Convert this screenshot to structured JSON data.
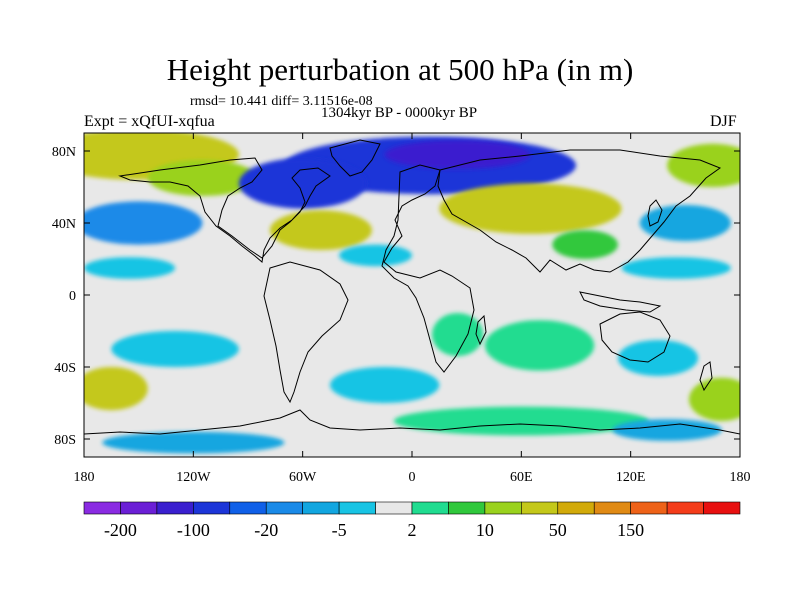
{
  "chart_data": {
    "type": "heatmap",
    "title": "Height perturbation at 500 hPa (in m)",
    "stats_line": "rmsd= 10.441  diff= 3.11516e-08",
    "subtitle": "1304kyr BP - 0000kyr BP",
    "left_label": "Expt = xQfUI-xqfua",
    "right_label": "DJF",
    "x_axis": {
      "range": [
        -180,
        180
      ],
      "ticks": [
        {
          "value": -180,
          "label": "180"
        },
        {
          "value": -120,
          "label": "120W"
        },
        {
          "value": -60,
          "label": "60W"
        },
        {
          "value": 0,
          "label": "0"
        },
        {
          "value": 60,
          "label": "60E"
        },
        {
          "value": 120,
          "label": "120E"
        },
        {
          "value": 180,
          "label": "180"
        }
      ]
    },
    "y_axis": {
      "range": [
        -90,
        90
      ],
      "ticks": [
        {
          "value": 80,
          "label": "80N"
        },
        {
          "value": 40,
          "label": "40N"
        },
        {
          "value": 0,
          "label": "0"
        },
        {
          "value": -40,
          "label": "40S"
        },
        {
          "value": -80,
          "label": "80S"
        }
      ]
    },
    "colorbar": {
      "colors": [
        "#8a2be2",
        "#6b1fd6",
        "#3a1fcf",
        "#1c35d8",
        "#1060e8",
        "#1a8ae8",
        "#12a6e0",
        "#18c4e4",
        "#e8e8e8",
        "#20dc90",
        "#30c83c",
        "#9ad21e",
        "#c4c81a",
        "#d2aa0a",
        "#e08a14",
        "#ee6218",
        "#f43c1a",
        "#e81010"
      ],
      "labels": [
        {
          "after_index": 0,
          "text": "-200"
        },
        {
          "after_index": 2,
          "text": "-100"
        },
        {
          "after_index": 4,
          "text": "-20"
        },
        {
          "after_index": 6,
          "text": "-5"
        },
        {
          "after_index": 8,
          "text": "2"
        },
        {
          "after_index": 10,
          "text": "10"
        },
        {
          "after_index": 12,
          "text": "50"
        },
        {
          "after_index": 14,
          "text": "150"
        }
      ]
    },
    "field_regions": [
      {
        "name": "arctic-pacific-high",
        "lon": -150,
        "lat": 78,
        "rx": 55,
        "ry": 14,
        "level": 12
      },
      {
        "name": "north-america-high",
        "lon": -115,
        "lat": 65,
        "rx": 30,
        "ry": 10,
        "level": 11
      },
      {
        "name": "arctic-low",
        "lon": 10,
        "lat": 72,
        "rx": 80,
        "ry": 16,
        "level": 3
      },
      {
        "name": "arctic-low-core",
        "lon": 25,
        "lat": 78,
        "rx": 40,
        "ry": 8,
        "level": 2
      },
      {
        "name": "canada-low",
        "lon": -60,
        "lat": 62,
        "rx": 35,
        "ry": 14,
        "level": 3
      },
      {
        "name": "eurasia-high",
        "lon": 65,
        "lat": 48,
        "rx": 50,
        "ry": 14,
        "level": 12
      },
      {
        "name": "north-atlantic-high",
        "lon": -50,
        "lat": 36,
        "rx": 28,
        "ry": 11,
        "level": 12
      },
      {
        "name": "north-pacific-low",
        "lon": -150,
        "lat": 40,
        "rx": 35,
        "ry": 12,
        "level": 5
      },
      {
        "name": "east-asia-low",
        "lon": 150,
        "lat": 40,
        "rx": 25,
        "ry": 10,
        "level": 6
      },
      {
        "name": "arctic-east-high",
        "lon": 165,
        "lat": 72,
        "rx": 25,
        "ry": 12,
        "level": 11
      },
      {
        "name": "south-asia-green",
        "lon": 95,
        "lat": 28,
        "rx": 18,
        "ry": 8,
        "level": 10
      },
      {
        "name": "tropical-band-west",
        "lon": -155,
        "lat": 15,
        "rx": 25,
        "ry": 6,
        "level": 7
      },
      {
        "name": "tropical-band-east",
        "lon": 145,
        "lat": 15,
        "rx": 30,
        "ry": 6,
        "level": 7
      },
      {
        "name": "atlantic-tropics",
        "lon": -20,
        "lat": 22,
        "rx": 20,
        "ry": 6,
        "level": 7
      },
      {
        "name": "south-pacific-low",
        "lon": -130,
        "lat": -30,
        "rx": 35,
        "ry": 10,
        "level": 7
      },
      {
        "name": "south-pacific-high",
        "lon": -165,
        "lat": -52,
        "rx": 20,
        "ry": 12,
        "level": 12
      },
      {
        "name": "south-atlantic-low",
        "lon": -15,
        "lat": -50,
        "rx": 30,
        "ry": 10,
        "level": 7
      },
      {
        "name": "africa-green",
        "lon": 25,
        "lat": -22,
        "rx": 14,
        "ry": 12,
        "level": 9
      },
      {
        "name": "indian-ocean-green",
        "lon": 70,
        "lat": -28,
        "rx": 30,
        "ry": 14,
        "level": 9
      },
      {
        "name": "australia-low",
        "lon": 135,
        "lat": -35,
        "rx": 22,
        "ry": 10,
        "level": 7
      },
      {
        "name": "south-east-high",
        "lon": 170,
        "lat": -58,
        "rx": 18,
        "ry": 12,
        "level": 11
      },
      {
        "name": "southern-ocean-green",
        "lon": 60,
        "lat": -70,
        "rx": 70,
        "ry": 8,
        "level": 9
      },
      {
        "name": "antarctic-low",
        "lon": -120,
        "lat": -82,
        "rx": 50,
        "ry": 6,
        "level": 6
      },
      {
        "name": "pacific-southern-low",
        "lon": 140,
        "lat": -75,
        "rx": 30,
        "ry": 6,
        "level": 6
      }
    ]
  }
}
